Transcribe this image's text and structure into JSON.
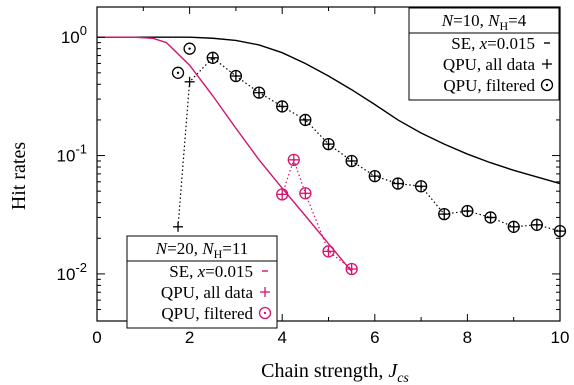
{
  "chart_data": {
    "type": "line",
    "xlabel": "Chain strength, ",
    "xlabel_var": "J",
    "xlabel_sub": "cs",
    "ylabel": "Hit rates",
    "xlim": [
      0,
      10
    ],
    "ylim": [
      0.004,
      1.8
    ],
    "yscale": "log",
    "grid": false,
    "x_ticks": [
      "0",
      "2",
      "4",
      "6",
      "8",
      "10"
    ],
    "x_tick_values": [
      0,
      2,
      4,
      6,
      8,
      10
    ],
    "y_ticks": [
      {
        "value": 1,
        "base": "10",
        "exp": "0"
      },
      {
        "value": 0.1,
        "base": "10",
        "exp": "-1"
      },
      {
        "value": 0.01,
        "base": "10",
        "exp": "-2"
      }
    ],
    "groups": [
      {
        "legend_title": {
          "n_var": "N",
          "n_value": "=10, ",
          "nh_var": "N",
          "nh_sub": "H",
          "nh_value": "=4"
        },
        "legend_position": "top-right",
        "color": "#000000",
        "series": [
          {
            "name": "SE, x=0.015",
            "legend_label_prefix": "SE, ",
            "legend_label_var": "x",
            "legend_label_suffix": "=0.015",
            "marker": "none",
            "line": "solid",
            "x": [
              0,
              1.0,
              1.6,
              2.0,
              2.5,
              3.0,
              3.5,
              4.0,
              4.5,
              5.0,
              5.5,
              6.0,
              6.5,
              7.0,
              7.5,
              8.0,
              8.5,
              9.0,
              9.5,
              10.0
            ],
            "y": [
              1.0,
              1.0,
              1.0,
              1.0,
              0.98,
              0.94,
              0.86,
              0.74,
              0.6,
              0.47,
              0.36,
              0.27,
              0.2,
              0.155,
              0.125,
              0.103,
              0.087,
              0.075,
              0.066,
              0.058
            ]
          },
          {
            "name": "QPU, all data",
            "marker": "plus",
            "line": "dotted",
            "x": [
              1.75,
              2.0,
              2.5,
              3.0,
              3.5,
              4.0,
              4.5,
              5.0,
              5.5,
              6.0,
              6.5,
              7.0,
              7.5,
              8.0,
              8.5,
              9.0,
              9.5,
              10.0
            ],
            "y": [
              0.025,
              0.42,
              0.67,
              0.47,
              0.34,
              0.26,
              0.2,
              0.125,
              0.09,
              0.067,
              0.058,
              0.055,
              0.032,
              0.034,
              0.03,
              0.025,
              0.026,
              0.023
            ]
          },
          {
            "name": "QPU, filtered",
            "marker": "circle-dot",
            "line": "none",
            "x": [
              1.75,
              2.0,
              2.5,
              3.0,
              3.5,
              4.0,
              4.5,
              5.0,
              5.5,
              6.0,
              6.5,
              7.0,
              7.5,
              8.0,
              8.5,
              9.0,
              9.5,
              10.0
            ],
            "y": [
              0.5,
              0.8,
              0.67,
              0.47,
              0.34,
              0.26,
              0.2,
              0.125,
              0.09,
              0.067,
              0.058,
              0.055,
              0.032,
              0.034,
              0.03,
              0.025,
              0.026,
              0.023
            ]
          }
        ]
      },
      {
        "legend_title": {
          "n_var": "N",
          "n_value": "=20, ",
          "nh_var": "N",
          "nh_sub": "H",
          "nh_value": "=11"
        },
        "legend_position": "bottom-left",
        "color": "#d4146e",
        "series": [
          {
            "name": "SE, x=0.015",
            "legend_label_prefix": "SE, ",
            "legend_label_var": "x",
            "legend_label_suffix": "=0.015",
            "marker": "none",
            "line": "solid",
            "x": [
              0,
              0.8,
              1.2,
              1.5,
              2.0,
              2.5,
              3.0,
              3.5,
              4.0,
              4.5,
              5.0,
              5.5
            ],
            "y": [
              1.0,
              1.0,
              0.98,
              0.9,
              0.58,
              0.32,
              0.17,
              0.092,
              0.053,
              0.031,
              0.018,
              0.0105
            ]
          },
          {
            "name": "QPU, all data",
            "marker": "plus",
            "line": "dotted",
            "x": [
              4.0,
              4.25,
              4.5,
              5.0,
              5.5
            ],
            "y": [
              0.047,
              0.092,
              0.048,
              0.0155,
              0.011
            ]
          },
          {
            "name": "QPU, filtered",
            "marker": "circle-dot",
            "line": "none",
            "x": [
              4.0,
              4.25,
              4.5,
              5.0,
              5.5
            ],
            "y": [
              0.047,
              0.092,
              0.048,
              0.0155,
              0.011
            ]
          }
        ]
      }
    ]
  }
}
